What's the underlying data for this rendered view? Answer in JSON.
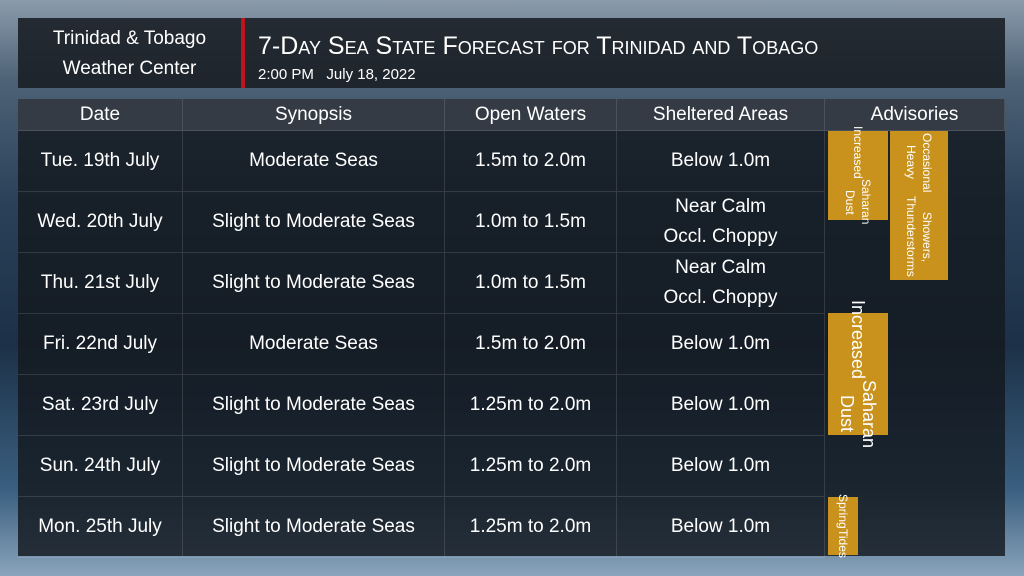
{
  "header": {
    "org": [
      "Trinidad & Tobago",
      "Weather Center"
    ],
    "title": "7-Day Sea State Forecast for Trinidad and Tobago",
    "time": "2:00 PM",
    "date": "July 18, 2022"
  },
  "table": {
    "columns": [
      "Date",
      "Synopsis",
      "Open Waters",
      "Sheltered Areas",
      "Advisories"
    ],
    "rows": [
      [
        "Tue. 19th July",
        "Moderate Seas",
        "1.5m to 2.0m",
        [
          "Below 1.0m"
        ]
      ],
      [
        "Wed. 20th July",
        "Slight to Moderate Seas",
        "1.0m to 1.5m",
        [
          "Near Calm",
          "Occl. Choppy"
        ]
      ],
      [
        "Thu. 21st July",
        "Slight to Moderate Seas",
        "1.0m to 1.5m",
        [
          "Near Calm",
          "Occl. Choppy"
        ]
      ],
      [
        "Fri. 22nd July",
        "Moderate Seas",
        "1.5m to 2.0m",
        [
          "Below 1.0m"
        ]
      ],
      [
        "Sat. 23rd July",
        "Slight to Moderate Seas",
        "1.25m to 2.0m",
        [
          "Below 1.0m"
        ]
      ],
      [
        "Sun. 24th July",
        "Slight to Moderate Seas",
        "1.25m to 2.0m",
        [
          "Below 1.0m"
        ]
      ],
      [
        "Mon. 25th July",
        "Slight to Moderate Seas",
        "1.25m to 2.0m",
        [
          "Below 1.0m"
        ]
      ]
    ]
  },
  "advisories": [
    {
      "lines": [
        "Increased",
        "Saharan Dust"
      ]
    },
    {
      "lines": [
        "Occasional Heavy",
        "Showers, Thunderstorms"
      ]
    },
    {
      "lines": [
        "Increased",
        "Saharan Dust"
      ]
    },
    {
      "lines": [
        "Spring",
        "Tides"
      ]
    }
  ]
}
